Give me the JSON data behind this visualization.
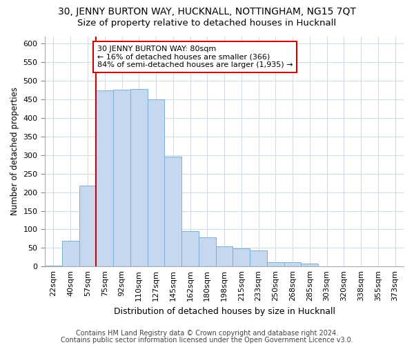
{
  "title1": "30, JENNY BURTON WAY, HUCKNALL, NOTTINGHAM, NG15 7QT",
  "title2": "Size of property relative to detached houses in Hucknall",
  "xlabel": "Distribution of detached houses by size in Hucknall",
  "ylabel": "Number of detached properties",
  "categories": [
    "22sqm",
    "40sqm",
    "57sqm",
    "75sqm",
    "92sqm",
    "110sqm",
    "127sqm",
    "145sqm",
    "162sqm",
    "180sqm",
    "198sqm",
    "215sqm",
    "233sqm",
    "250sqm",
    "268sqm",
    "285sqm",
    "303sqm",
    "320sqm",
    "338sqm",
    "355sqm",
    "373sqm"
  ],
  "values": [
    2,
    70,
    218,
    475,
    476,
    478,
    450,
    295,
    96,
    79,
    54,
    48,
    43,
    11,
    11,
    8,
    1,
    0,
    0,
    0,
    0
  ],
  "bar_color": "#c5d8f0",
  "bar_edge_color": "#7aafd4",
  "highlight_line_index": 3,
  "highlight_color": "#cc0000",
  "annotation_line1": "30 JENNY BURTON WAY: 80sqm",
  "annotation_line2": "← 16% of detached houses are smaller (366)",
  "annotation_line3": "84% of semi-detached houses are larger (1,935) →",
  "annotation_box_color": "white",
  "annotation_box_edge": "#cc0000",
  "ylim": [
    0,
    620
  ],
  "yticks": [
    0,
    50,
    100,
    150,
    200,
    250,
    300,
    350,
    400,
    450,
    500,
    550,
    600
  ],
  "footnote1": "Contains HM Land Registry data © Crown copyright and database right 2024.",
  "footnote2": "Contains public sector information licensed under the Open Government Licence v3.0.",
  "bg_color": "#ffffff",
  "plot_bg_color": "#ffffff",
  "grid_color": "#d0dce8",
  "title1_fontsize": 10,
  "title2_fontsize": 9.5,
  "xlabel_fontsize": 9,
  "ylabel_fontsize": 8.5,
  "tick_fontsize": 8,
  "annotation_fontsize": 8,
  "footnote_fontsize": 7
}
